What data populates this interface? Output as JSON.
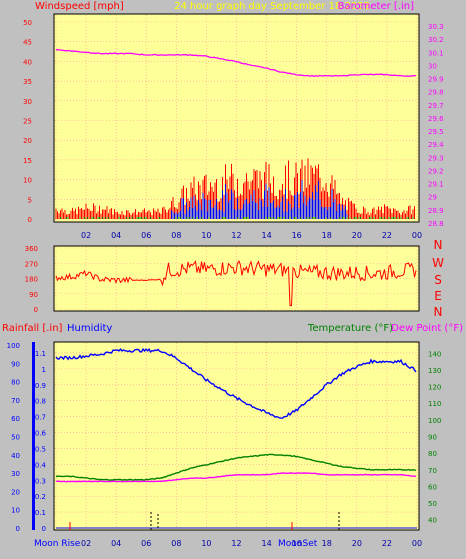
{
  "header": {
    "windspeed_label": "Windspeed [mph]",
    "title": "24 hour graph day   September 18 2022",
    "barometer_label": "Barometer [.in]"
  },
  "bottom_header": {
    "rainfall_label": "Rainfall [.in]",
    "humidity_label": "Humidity",
    "temperature_label": "Temperature (°F)",
    "dewpoint_label": "Dew Point (°F)"
  },
  "time_labels": [
    "02",
    "04",
    "06",
    "08",
    "10",
    "12",
    "14",
    "16",
    "18",
    "20",
    "22",
    "00"
  ],
  "compass_labels": [
    "N",
    "W",
    "S",
    "E",
    "N"
  ],
  "astro": {
    "moon_rise": "Moon Rise",
    "moon_set": "MoonSet"
  },
  "colors": {
    "plot_bg": "#ffff99",
    "frame": "#c0c0c0",
    "wind": "#ff0000",
    "gust": "#0000ff",
    "wind_low": "#008000",
    "barometer": "#ff00ff",
    "humidity": "#0000ff",
    "temperature": "#008000",
    "dewpoint": "#ff00ff",
    "rain": "#0000ff",
    "title": "#ffff00"
  },
  "chart_data": [
    {
      "type": "line",
      "panel": "wind-barometer",
      "x_ticks": [
        "02",
        "04",
        "06",
        "08",
        "10",
        "12",
        "14",
        "16",
        "18",
        "20",
        "22",
        "00"
      ],
      "ylabel": "Windspeed [mph]",
      "ylim": [
        0,
        50
      ],
      "y_ticks": [
        0,
        5,
        10,
        15,
        20,
        25,
        30,
        35,
        40,
        45,
        50
      ],
      "y2label": "Barometer [.in]",
      "y2lim": [
        28.8,
        30.3
      ],
      "y2_ticks": [
        "28.8",
        "28.9",
        "29",
        "29.1",
        "29.2",
        "29.3",
        "29.4",
        "29.5",
        "29.6",
        "29.7",
        "29.8",
        "29.9",
        "30",
        "30.1",
        "30.2",
        "30.3"
      ],
      "grid": true,
      "series": [
        {
          "name": "Windspeed [mph]",
          "axis": "left",
          "style": "bars",
          "x_hours": [
            0,
            1,
            2,
            3,
            4,
            5,
            6,
            7,
            8,
            9,
            10,
            11,
            12,
            13,
            14,
            15,
            16,
            17,
            18,
            19,
            20,
            21,
            22,
            23,
            24
          ],
          "values": [
            3,
            2,
            3,
            3,
            2,
            2,
            2,
            2,
            5,
            8,
            9,
            10,
            11,
            11,
            11,
            11,
            11,
            12,
            12,
            5,
            3,
            2,
            3,
            2,
            3
          ]
        },
        {
          "name": "Barometer [.in]",
          "axis": "right",
          "x_hours": [
            0,
            1,
            2,
            3,
            4,
            5,
            6,
            7,
            8,
            9,
            10,
            11,
            12,
            13,
            14,
            15,
            16,
            17,
            18,
            19,
            20,
            21,
            22,
            23,
            24
          ],
          "values": [
            30.12,
            30.11,
            30.1,
            30.09,
            30.09,
            30.09,
            30.08,
            30.08,
            30.08,
            30.08,
            30.07,
            30.05,
            30.03,
            30.0,
            29.98,
            29.95,
            29.93,
            29.92,
            29.92,
            29.92,
            29.93,
            29.93,
            29.93,
            29.92,
            29.92
          ]
        }
      ]
    },
    {
      "type": "line",
      "panel": "wind-direction",
      "ylim": [
        0,
        360
      ],
      "y_ticks": [
        0,
        90,
        180,
        270,
        360
      ],
      "right_labels": [
        "N",
        "W",
        "S",
        "E",
        "N"
      ],
      "grid": true,
      "series": [
        {
          "name": "Wind direction",
          "x_hours": [
            0,
            1,
            2,
            3,
            4,
            5,
            6,
            7,
            7.5,
            8,
            9,
            10,
            11,
            12,
            13,
            14,
            15,
            16,
            17,
            18,
            19,
            20,
            21,
            22,
            23,
            24
          ],
          "values": [
            185,
            190,
            210,
            175,
            170,
            170,
            170,
            175,
            230,
            230,
            240,
            235,
            240,
            245,
            240,
            235,
            230,
            220,
            215,
            215,
            210,
            215,
            210,
            215,
            225,
            230
          ]
        }
      ]
    },
    {
      "type": "line",
      "panel": "temp-humidity-rain",
      "ylabel": "Rainfall [.in]",
      "ylim": [
        0,
        1.15
      ],
      "y_ticks": [
        "0",
        "0.1",
        "0.2",
        "0.3",
        "0.4",
        "0.5",
        "0.6",
        "0.7",
        "0.8",
        "0.9",
        "1",
        "1.1"
      ],
      "humidity_ticks": [
        0,
        10,
        20,
        30,
        40,
        50,
        60,
        70,
        80,
        90,
        100
      ],
      "y2label": "Temperature (°F)",
      "y2lim": [
        35,
        145
      ],
      "y2_ticks": [
        40,
        50,
        60,
        70,
        80,
        90,
        100,
        110,
        120,
        130,
        140
      ],
      "grid": true,
      "series": [
        {
          "name": "Humidity",
          "axis": "humidity",
          "x_hours": [
            0,
            1,
            2,
            3,
            4,
            5,
            6,
            7,
            8,
            9,
            10,
            11,
            12,
            13,
            14,
            15,
            16,
            17,
            18,
            19,
            20,
            21,
            22,
            23,
            24
          ],
          "values": [
            93,
            93,
            94,
            95,
            97,
            97,
            97,
            97,
            93,
            87,
            81,
            76,
            71,
            67,
            63,
            60,
            64,
            71,
            78,
            84,
            88,
            91,
            91,
            91,
            86
          ]
        },
        {
          "name": "Temperature (°F)",
          "axis": "right",
          "x_hours": [
            0,
            1,
            2,
            3,
            4,
            5,
            6,
            7,
            8,
            9,
            10,
            11,
            12,
            13,
            14,
            15,
            16,
            17,
            18,
            19,
            20,
            21,
            22,
            23,
            24
          ],
          "values": [
            66,
            66,
            65,
            64,
            64,
            64,
            64,
            65,
            68,
            71,
            73,
            75,
            77,
            78,
            79,
            79,
            78,
            76,
            74,
            72,
            71,
            70,
            70,
            70,
            70
          ]
        },
        {
          "name": "Dew Point (°F)",
          "axis": "right",
          "x_hours": [
            0,
            1,
            2,
            3,
            4,
            5,
            6,
            7,
            8,
            9,
            10,
            11,
            12,
            13,
            14,
            15,
            16,
            17,
            18,
            19,
            20,
            21,
            22,
            23,
            24
          ],
          "values": [
            63,
            63,
            63,
            63,
            63,
            63,
            63,
            63,
            64,
            65,
            65,
            66,
            67,
            67,
            67,
            68,
            68,
            68,
            67,
            67,
            67,
            67,
            67,
            67,
            66
          ]
        },
        {
          "name": "Rainfall [.in]",
          "axis": "left",
          "x_hours": [
            0,
            24
          ],
          "values": [
            0,
            0
          ]
        }
      ]
    }
  ]
}
